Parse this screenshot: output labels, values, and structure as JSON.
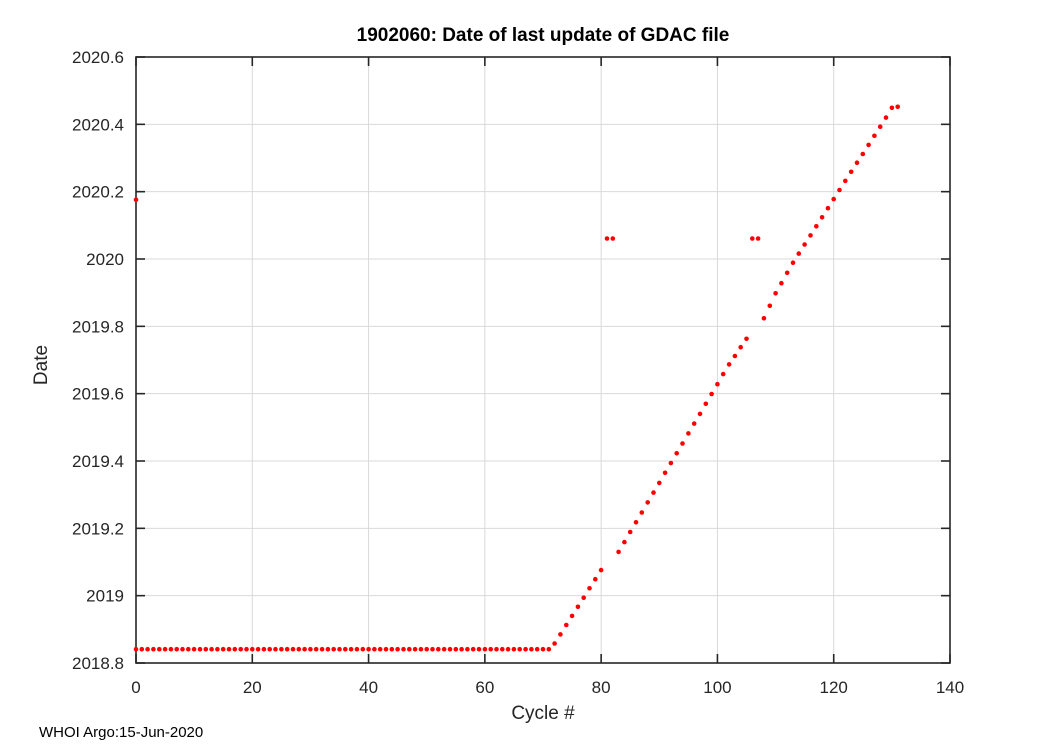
{
  "page": {
    "background": "#ffffff"
  },
  "chart_data": {
    "type": "scatter",
    "title": "1902060: Date of last update of GDAC file",
    "xlabel": "Cycle #",
    "ylabel": "Date",
    "watermark": "WHOI Argo:15-Jun-2020",
    "xlim": [
      0,
      140
    ],
    "ylim": [
      2018.8,
      2020.6
    ],
    "xticks": [
      0,
      20,
      40,
      60,
      80,
      100,
      120,
      140
    ],
    "xtick_labels": [
      "0",
      "20",
      "40",
      "60",
      "80",
      "100",
      "120",
      "140"
    ],
    "yticks": [
      2018.8,
      2019,
      2019.2,
      2019.4,
      2019.6,
      2019.8,
      2020,
      2020.2,
      2020.4,
      2020.6
    ],
    "ytick_labels": [
      "2018.8",
      "2019",
      "2019.2",
      "2019.4",
      "2019.6",
      "2019.8",
      "2020",
      "2020.2",
      "2020.4",
      "2020.6"
    ],
    "grid": true,
    "legend_position": "none",
    "colors": {
      "marker": "#ff0000",
      "axis": "#262626",
      "grid": "#d9d9d9",
      "title": "#000000"
    },
    "marker": {
      "shape": "circle",
      "radius_px": 2.3
    },
    "points": [
      [
        0,
        2020.176
      ],
      [
        0,
        2018.841
      ],
      [
        1,
        2018.841
      ],
      [
        2,
        2018.841
      ],
      [
        3,
        2018.841
      ],
      [
        4,
        2018.841
      ],
      [
        5,
        2018.841
      ],
      [
        6,
        2018.841
      ],
      [
        7,
        2018.841
      ],
      [
        8,
        2018.841
      ],
      [
        9,
        2018.841
      ],
      [
        10,
        2018.841
      ],
      [
        11,
        2018.841
      ],
      [
        12,
        2018.841
      ],
      [
        13,
        2018.841
      ],
      [
        14,
        2018.841
      ],
      [
        15,
        2018.841
      ],
      [
        16,
        2018.841
      ],
      [
        17,
        2018.841
      ],
      [
        18,
        2018.841
      ],
      [
        19,
        2018.841
      ],
      [
        20,
        2018.841
      ],
      [
        21,
        2018.841
      ],
      [
        22,
        2018.841
      ],
      [
        23,
        2018.841
      ],
      [
        24,
        2018.841
      ],
      [
        25,
        2018.841
      ],
      [
        26,
        2018.841
      ],
      [
        27,
        2018.841
      ],
      [
        28,
        2018.841
      ],
      [
        29,
        2018.841
      ],
      [
        30,
        2018.841
      ],
      [
        31,
        2018.841
      ],
      [
        32,
        2018.841
      ],
      [
        33,
        2018.841
      ],
      [
        34,
        2018.841
      ],
      [
        35,
        2018.841
      ],
      [
        36,
        2018.841
      ],
      [
        37,
        2018.841
      ],
      [
        38,
        2018.841
      ],
      [
        39,
        2018.841
      ],
      [
        40,
        2018.841
      ],
      [
        41,
        2018.841
      ],
      [
        42,
        2018.841
      ],
      [
        43,
        2018.841
      ],
      [
        44,
        2018.841
      ],
      [
        45,
        2018.841
      ],
      [
        46,
        2018.841
      ],
      [
        47,
        2018.841
      ],
      [
        48,
        2018.841
      ],
      [
        49,
        2018.841
      ],
      [
        50,
        2018.841
      ],
      [
        51,
        2018.841
      ],
      [
        52,
        2018.841
      ],
      [
        53,
        2018.841
      ],
      [
        54,
        2018.841
      ],
      [
        55,
        2018.841
      ],
      [
        56,
        2018.841
      ],
      [
        57,
        2018.841
      ],
      [
        58,
        2018.841
      ],
      [
        59,
        2018.841
      ],
      [
        60,
        2018.841
      ],
      [
        61,
        2018.841
      ],
      [
        62,
        2018.841
      ],
      [
        63,
        2018.841
      ],
      [
        64,
        2018.841
      ],
      [
        65,
        2018.841
      ],
      [
        66,
        2018.841
      ],
      [
        67,
        2018.841
      ],
      [
        68,
        2018.841
      ],
      [
        69,
        2018.841
      ],
      [
        70,
        2018.841
      ],
      [
        71,
        2018.841
      ],
      [
        72,
        2018.858
      ],
      [
        73,
        2018.885
      ],
      [
        74,
        2018.913
      ],
      [
        75,
        2018.94
      ],
      [
        76,
        2018.967
      ],
      [
        77,
        2018.994
      ],
      [
        78,
        2019.022
      ],
      [
        79,
        2019.049
      ],
      [
        80,
        2019.076
      ],
      [
        81,
        2020.061
      ],
      [
        82,
        2020.061
      ],
      [
        83,
        2019.13
      ],
      [
        84,
        2019.159
      ],
      [
        85,
        2019.189
      ],
      [
        86,
        2019.218
      ],
      [
        87,
        2019.247
      ],
      [
        88,
        2019.277
      ],
      [
        89,
        2019.306
      ],
      [
        90,
        2019.335
      ],
      [
        91,
        2019.365
      ],
      [
        92,
        2019.394
      ],
      [
        93,
        2019.423
      ],
      [
        94,
        2019.452
      ],
      [
        95,
        2019.482
      ],
      [
        96,
        2019.511
      ],
      [
        97,
        2019.54
      ],
      [
        98,
        2019.57
      ],
      [
        99,
        2019.599
      ],
      [
        100,
        2019.628
      ],
      [
        101,
        2019.658
      ],
      [
        102,
        2019.687
      ],
      [
        103,
        2019.712
      ],
      [
        104,
        2019.738
      ],
      [
        105,
        2019.763
      ],
      [
        106,
        2020.061
      ],
      [
        107,
        2020.061
      ],
      [
        108,
        2019.824
      ],
      [
        109,
        2019.861
      ],
      [
        110,
        2019.898
      ],
      [
        111,
        2019.928
      ],
      [
        112,
        2019.959
      ],
      [
        113,
        2019.989
      ],
      [
        114,
        2020.016
      ],
      [
        115,
        2020.043
      ],
      [
        116,
        2020.07
      ],
      [
        117,
        2020.097
      ],
      [
        118,
        2020.124
      ],
      [
        119,
        2020.151
      ],
      [
        120,
        2020.178
      ],
      [
        121,
        2020.205
      ],
      [
        122,
        2020.232
      ],
      [
        123,
        2020.259
      ],
      [
        124,
        2020.286
      ],
      [
        125,
        2020.312
      ],
      [
        126,
        2020.339
      ],
      [
        127,
        2020.366
      ],
      [
        128,
        2020.393
      ],
      [
        129,
        2020.42
      ],
      [
        130,
        2020.449
      ],
      [
        131,
        2020.452
      ]
    ]
  }
}
